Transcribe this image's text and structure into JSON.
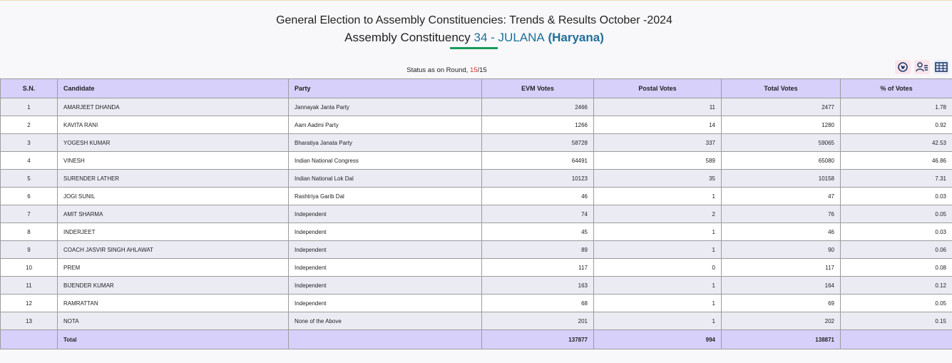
{
  "header": {
    "title": "General Election to Assembly Constituencies: Trends & Results October -2024",
    "subtitle_label": "Assembly Constituency",
    "constituency": "34 - JULANA",
    "state": "(Haryana)"
  },
  "status": {
    "label": "Status as on Round,",
    "round": "15",
    "of": "/15"
  },
  "table": {
    "columns": [
      "S.N.",
      "Candidate",
      "Party",
      "EVM Votes",
      "Postal Votes",
      "Total Votes",
      "% of Votes"
    ],
    "rows": [
      [
        "1",
        "AMARJEET DHANDA",
        "Jannayak Janta Party",
        "2466",
        "11",
        "2477",
        "1.78"
      ],
      [
        "2",
        "KAVITA RANI",
        "Aam Aadmi Party",
        "1266",
        "14",
        "1280",
        "0.92"
      ],
      [
        "3",
        "YOGESH KUMAR",
        "Bharatiya Janata Party",
        "58728",
        "337",
        "59065",
        "42.53"
      ],
      [
        "4",
        "VINESH",
        "Indian National Congress",
        "64491",
        "589",
        "65080",
        "46.86"
      ],
      [
        "5",
        "SURENDER LATHER",
        "Indian National Lok Dal",
        "10123",
        "35",
        "10158",
        "7.31"
      ],
      [
        "6",
        "JOGI SUNIL",
        "Rashtriya Garib Dal",
        "46",
        "1",
        "47",
        "0.03"
      ],
      [
        "7",
        "AMIT SHARMA",
        "Independent",
        "74",
        "2",
        "76",
        "0.05"
      ],
      [
        "8",
        "INDERJEET",
        "Independent",
        "45",
        "1",
        "46",
        "0.03"
      ],
      [
        "9",
        "COACH JASVIR SINGH AHLAWAT",
        "Independent",
        "89",
        "1",
        "90",
        "0.06"
      ],
      [
        "10",
        "PREM",
        "Independent",
        "117",
        "0",
        "117",
        "0.08"
      ],
      [
        "11",
        "BIJENDER KUMAR",
        "Independent",
        "163",
        "1",
        "164",
        "0.12"
      ],
      [
        "12",
        "RAMRATTAN",
        "Independent",
        "68",
        "1",
        "69",
        "0.05"
      ],
      [
        "13",
        "NOTA",
        "None of the Above",
        "201",
        "1",
        "202",
        "0.15"
      ]
    ],
    "total": {
      "label": "Total",
      "evm": "137877",
      "postal": "994",
      "total": "138871"
    }
  }
}
